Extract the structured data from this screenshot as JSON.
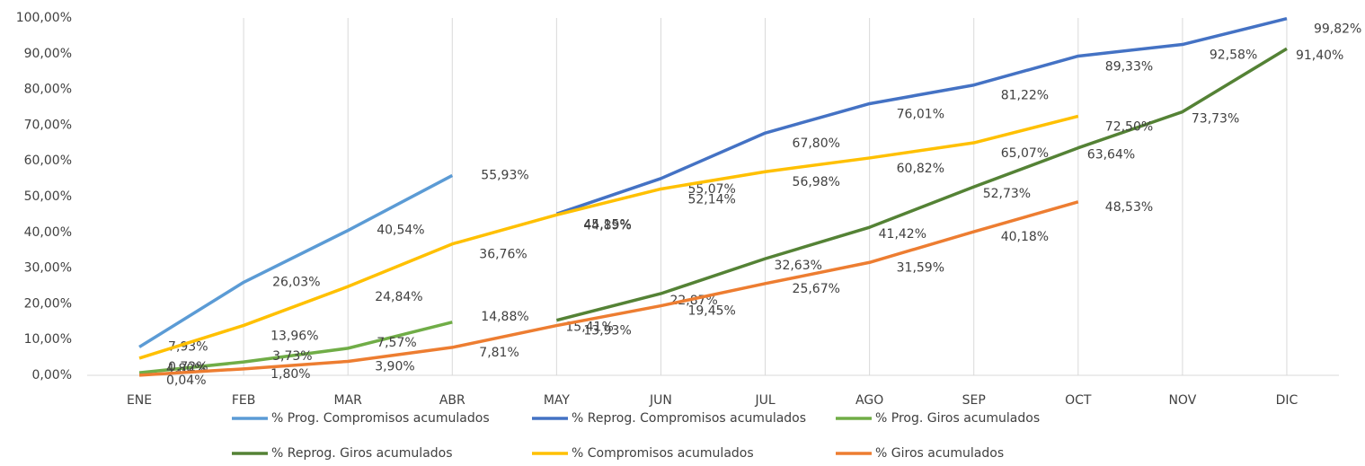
{
  "chart_data": {
    "type": "line",
    "categories": [
      "ENE",
      "FEB",
      "MAR",
      "ABR",
      "MAY",
      "JUN",
      "JUL",
      "AGO",
      "SEP",
      "OCT",
      "NOV",
      "DIC"
    ],
    "ylim": [
      0,
      100
    ],
    "yticks": [
      {
        "value": 0,
        "label": "0,00%"
      },
      {
        "value": 10,
        "label": "10,00%"
      },
      {
        "value": 20,
        "label": "20,00%"
      },
      {
        "value": 30,
        "label": "30,00%"
      },
      {
        "value": 40,
        "label": "40,00%"
      },
      {
        "value": 50,
        "label": "50,00%"
      },
      {
        "value": 60,
        "label": "60,00%"
      },
      {
        "value": 70,
        "label": "70,00%"
      },
      {
        "value": 80,
        "label": "80,00%"
      },
      {
        "value": 90,
        "label": "90,00%"
      },
      {
        "value": 100,
        "label": "100,00%"
      }
    ],
    "grid": true,
    "series": [
      {
        "name": "% Prog. Compromisos acumulados",
        "color": "#5b9bd5",
        "values": [
          7.93,
          26.03,
          40.54,
          55.93,
          null,
          null,
          null,
          null,
          null,
          null,
          null,
          null
        ],
        "value_labels": [
          "7,93%",
          "26,03%",
          "40,54%",
          "55,93%",
          null,
          null,
          null,
          null,
          null,
          null,
          null,
          null
        ]
      },
      {
        "name": "% Reprog. Compromisos acumulados",
        "color": "#4472c4",
        "values": [
          null,
          null,
          null,
          null,
          45.15,
          55.07,
          67.8,
          76.01,
          81.22,
          89.33,
          92.58,
          99.82
        ],
        "value_labels": [
          null,
          null,
          null,
          null,
          "45,15%",
          "55,07%",
          "67,80%",
          "76,01%",
          "81,22%",
          "89,33%",
          "92,58%",
          "99,82%"
        ]
      },
      {
        "name": "% Prog. Giros acumulados",
        "color": "#70ad47",
        "values": [
          0.72,
          3.73,
          7.57,
          14.88,
          null,
          null,
          null,
          null,
          null,
          null,
          null,
          null
        ],
        "value_labels": [
          "0,72%",
          "3,73%",
          "7,57%",
          "14,88%",
          null,
          null,
          null,
          null,
          null,
          null,
          null,
          null
        ]
      },
      {
        "name": "% Reprog. Giros acumulados",
        "color": "#548235",
        "values": [
          null,
          null,
          null,
          null,
          15.41,
          22.87,
          32.63,
          41.42,
          52.73,
          63.64,
          73.73,
          91.4
        ],
        "value_labels": [
          null,
          null,
          null,
          null,
          "15,41%",
          "22,87%",
          "32,63%",
          "41,42%",
          "52,73%",
          "63,64%",
          "73,73%",
          "91,40%"
        ]
      },
      {
        "name": "% Compromisos acumulados",
        "color": "#ffc000",
        "values": [
          4.8,
          13.96,
          24.84,
          36.76,
          44.89,
          52.14,
          56.98,
          60.82,
          65.07,
          72.5,
          null,
          null
        ],
        "value_labels": [
          "4,80%",
          "13,96%",
          "24,84%",
          "36,76%",
          "44,89%",
          "52,14%",
          "56,98%",
          "60,82%",
          "65,07%",
          "72,50%",
          null,
          null
        ]
      },
      {
        "name": "% Giros acumulados",
        "color": "#ed7d31",
        "values": [
          0.04,
          1.8,
          3.9,
          7.81,
          13.93,
          19.45,
          25.67,
          31.59,
          40.18,
          48.53,
          null,
          null
        ],
        "value_labels": [
          "0,04%",
          "1,80%",
          "3,90%",
          "7,81%",
          "13,93%",
          "19,45%",
          "25,67%",
          "31,59%",
          "40,18%",
          "48,53%",
          null,
          null
        ]
      }
    ]
  }
}
